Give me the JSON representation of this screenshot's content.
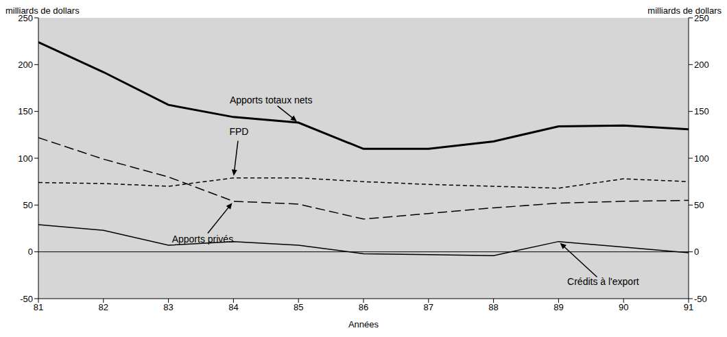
{
  "chart_data": {
    "type": "line",
    "y_label": "milliards de dollars",
    "y2_label": "milliards de dollars",
    "x_label": "Années",
    "x": [
      81,
      82,
      83,
      84,
      85,
      86,
      87,
      88,
      89,
      90,
      91
    ],
    "xlim": [
      81,
      91
    ],
    "xticks": [
      81,
      82,
      83,
      84,
      85,
      86,
      87,
      88,
      89,
      90,
      91
    ],
    "ylim": [
      -50,
      250
    ],
    "yticks": [
      -50,
      0,
      50,
      100,
      150,
      200,
      250
    ],
    "y2lim": [
      -50,
      250
    ],
    "y2ticks": [
      -50,
      0,
      50,
      100,
      150,
      200,
      250
    ],
    "grid": false,
    "series": [
      {
        "name": "Apports totaux nets",
        "color": "#000000",
        "line_style": "solid",
        "values": [
          224,
          192,
          157,
          144,
          138,
          110,
          110,
          118,
          134,
          135,
          131
        ]
      },
      {
        "name": "FPD",
        "color": "#000000",
        "line_style": "dashed",
        "values": [
          74,
          73,
          70,
          79,
          79,
          75,
          72,
          70,
          68,
          78,
          75
        ]
      },
      {
        "name": "Apports privés",
        "color": "#000000",
        "line_style": "longdash",
        "values": [
          122,
          99,
          80,
          54,
          51,
          35,
          41,
          47,
          52,
          54,
          55
        ]
      },
      {
        "name": "Crédits à l'export",
        "color": "#000000",
        "line_style": "solid",
        "values": [
          29,
          23,
          7,
          11,
          7,
          -2,
          -3,
          -4,
          11,
          5,
          -1
        ]
      }
    ]
  }
}
